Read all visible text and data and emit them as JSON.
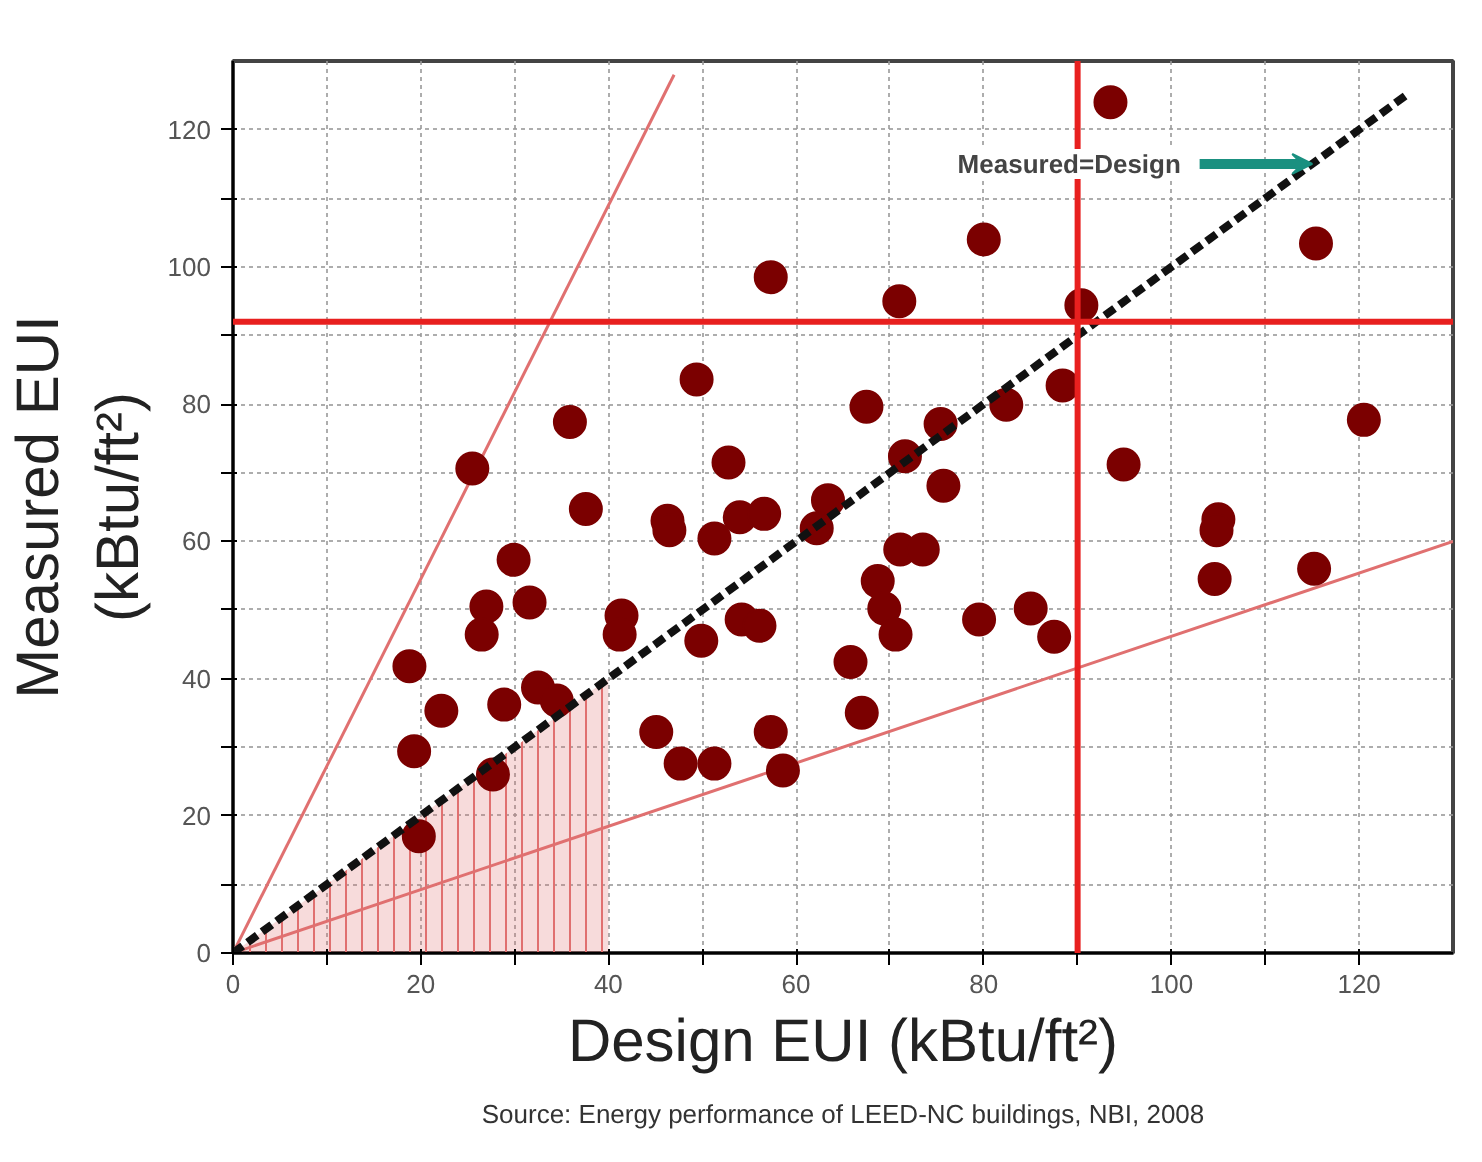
{
  "chart_data": {
    "type": "scatter",
    "xlabel": "Design EUI (kBtu/ft²)",
    "ylabel": "Measured EUI\n(kBtu/ft²)",
    "xlim": [
      0,
      130
    ],
    "ylim": [
      0,
      130
    ],
    "xticks": [
      0,
      {
        "value": 10,
        "label": null
      },
      20,
      {
        "value": 30,
        "label": null
      },
      40,
      {
        "value": 50,
        "label": null
      },
      60,
      {
        "value": 70,
        "label": null
      },
      80,
      {
        "value": 90,
        "label": null
      },
      100,
      {
        "value": 110,
        "label": null
      },
      120
    ],
    "yticks": [
      0,
      {
        "value": 10,
        "label": null
      },
      20,
      {
        "value": 30,
        "label": null
      },
      40,
      {
        "value": 50,
        "label": null
      },
      60,
      {
        "value": 70,
        "label": null
      },
      80,
      {
        "value": 90,
        "label": null
      },
      100,
      {
        "value": 110,
        "label": null
      },
      120
    ],
    "grid": true,
    "series": [
      {
        "type": "area",
        "color": "#e07070",
        "x": [
          0,
          40
        ],
        "values": [
          0,
          40
        ]
      },
      {
        "type": "line",
        "color": "#e07070",
        "line_style": "solid",
        "x": [
          0,
          47
        ],
        "values": [
          0,
          128
        ]
      },
      {
        "type": "line",
        "color": "#e07070",
        "line_style": "solid",
        "x": [
          0,
          130
        ],
        "values": [
          0,
          60
        ]
      },
      {
        "marker": "circle",
        "color": "#7b0000",
        "x": [
          93.5,
          57.3,
          80,
          71,
          115.4,
          90.4,
          88.4,
          49.4,
          35.9,
          52.8,
          25.5,
          67.5,
          82.4,
          75.4,
          120.5,
          71.6,
          75.7,
          94.9,
          63.4,
          105,
          37.6,
          46.3,
          54,
          56.6,
          46.5,
          51.3,
          62.2,
          29.9,
          27,
          31.6,
          26.5,
          41.4,
          41.2,
          49.9,
          54.2,
          56.1,
          18.8,
          32.5,
          34.5,
          22.2,
          28.9,
          19.3,
          45.1,
          47.7,
          51.3,
          57.3,
          58.6,
          27.7,
          19.8,
          71.1,
          73.5,
          68.7,
          69.4,
          70.6,
          79.5,
          85,
          87.5,
          65.8,
          67,
          104.8,
          104.6,
          115.2
        ],
        "values": [
          124,
          98.5,
          104,
          95,
          103.4,
          94.4,
          82.7,
          83.6,
          77.4,
          71.5,
          70.6,
          79.6,
          79.9,
          77.1,
          77.7,
          72.4,
          68.1,
          71.2,
          66,
          63.2,
          64.7,
          63,
          63.5,
          64,
          61.6,
          60.4,
          61.9,
          57.3,
          50.5,
          51.1,
          46.4,
          49.2,
          46.4,
          45.5,
          48.6,
          47.7,
          41.8,
          38.7,
          36.8,
          35.3,
          36.2,
          29.4,
          32.2,
          27.6,
          27.6,
          32.2,
          26.6,
          26,
          17,
          58.8,
          58.8,
          54.2,
          50.2,
          46.4,
          48.6,
          50.2,
          46.1,
          42.4,
          35,
          61.6,
          54.5,
          56
        ]
      },
      {
        "type": "line",
        "color": "#111111",
        "line_style": "dashed",
        "x": [
          0,
          125
        ],
        "values": [
          0,
          125
        ]
      }
    ],
    "ref_lines": [
      {
        "axis": "x",
        "value": 90,
        "color": "#e8201f"
      },
      {
        "axis": "y",
        "value": 92,
        "color": "#e8201f"
      }
    ],
    "annotations": [
      {
        "text": "Measured=Design",
        "x": 115,
        "y": 115
      },
      "Source: Energy performance of LEED-NC buildings, NBI, 2008"
    ]
  }
}
